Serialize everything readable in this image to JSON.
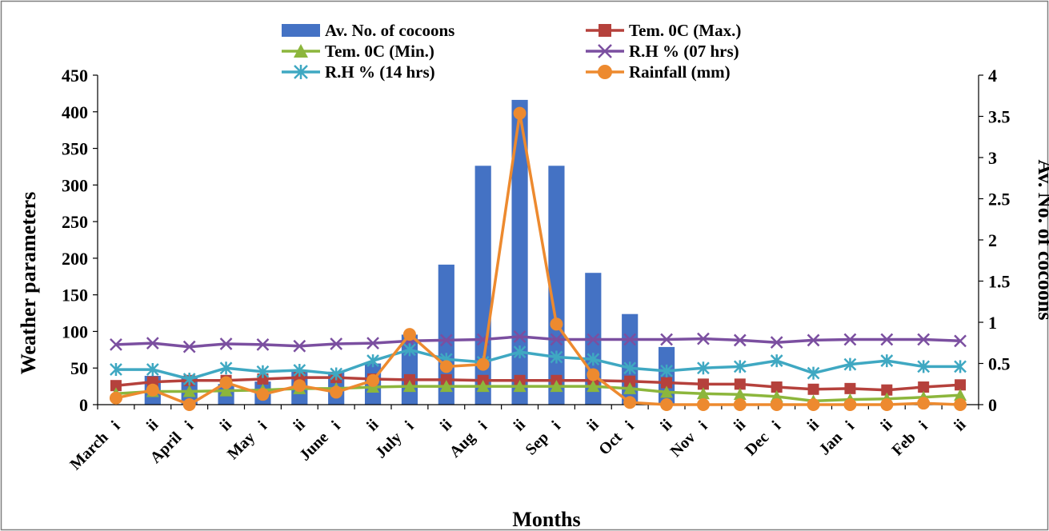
{
  "chart_data": {
    "type": "bar",
    "title": "",
    "xlabel": "Months",
    "ylabel": "Weather parameters",
    "y2label": "Av. No. of cocoons",
    "ylim": [
      0,
      450
    ],
    "yticks": [
      0,
      50,
      100,
      150,
      200,
      250,
      300,
      350,
      400,
      450
    ],
    "y2lim": [
      0,
      4
    ],
    "y2ticks": [
      0,
      0.5,
      1,
      1.5,
      2,
      2.5,
      3,
      3.5,
      4
    ],
    "grid": false,
    "legend_position": "top",
    "categories": [
      "i",
      "ii",
      "i",
      "ii",
      "i",
      "ii",
      "i",
      "ii",
      "i",
      "ii",
      "i",
      "ii",
      "i",
      "ii",
      "i",
      "ii",
      "i",
      "ii",
      "i",
      "ii",
      "i",
      "ii",
      "i",
      "ii"
    ],
    "months": [
      "March",
      "April",
      "May",
      "June",
      "July",
      "Aug",
      "Sep",
      "Oct",
      "Nov",
      "Dec",
      "Jan",
      "Feb"
    ],
    "series": [
      {
        "name": "Av. No. of cocoons",
        "type": "bar",
        "axis": "right",
        "color": "#4472C4",
        "values": [
          0,
          0.35,
          0.35,
          0.25,
          0.28,
          0.4,
          0.4,
          0.5,
          0.85,
          1.7,
          2.9,
          3.7,
          2.9,
          1.6,
          1.1,
          0.7,
          0,
          0,
          0,
          0,
          0,
          0,
          0,
          0
        ]
      },
      {
        "name": "Tem. 0C (Max.)",
        "type": "line",
        "axis": "left",
        "color": "#B5413C",
        "marker": "square",
        "values": [
          26,
          31,
          33,
          33,
          35,
          37,
          37,
          35,
          34,
          34,
          33,
          33,
          33,
          33,
          32,
          30,
          28,
          28,
          24,
          21,
          22,
          20,
          24,
          27
        ]
      },
      {
        "name": "Tem. 0C (Min.)",
        "type": "line",
        "axis": "left",
        "color": "#8CB63C",
        "marker": "triangle",
        "values": [
          15,
          18,
          18,
          19,
          20,
          22,
          22,
          24,
          25,
          25,
          25,
          25,
          25,
          25,
          22,
          17,
          15,
          14,
          11,
          5,
          7,
          8,
          10,
          13
        ]
      },
      {
        "name": "R.H % (07 hrs)",
        "type": "line",
        "axis": "left",
        "color": "#7B4FA0",
        "marker": "x",
        "values": [
          82,
          84,
          79,
          83,
          82,
          80,
          83,
          84,
          87,
          88,
          89,
          93,
          89,
          89,
          89,
          89,
          90,
          88,
          85,
          88,
          89,
          89,
          89,
          87
        ]
      },
      {
        "name": "R.H % (14 hrs)",
        "type": "line",
        "axis": "left",
        "color": "#3FA8C2",
        "marker": "star",
        "values": [
          48,
          48,
          35,
          50,
          45,
          47,
          42,
          60,
          75,
          62,
          58,
          72,
          65,
          62,
          50,
          46,
          50,
          52,
          60,
          43,
          55,
          60,
          52,
          52
        ]
      },
      {
        "name": "Rainfall (mm)",
        "type": "line",
        "axis": "left",
        "color": "#ED8A2F",
        "marker": "circle",
        "values": [
          9,
          20,
          0,
          30,
          14,
          26,
          17,
          33,
          96,
          52,
          55,
          398,
          110,
          41,
          3,
          0,
          0,
          0,
          0,
          0,
          0,
          0,
          2,
          0
        ]
      }
    ]
  }
}
